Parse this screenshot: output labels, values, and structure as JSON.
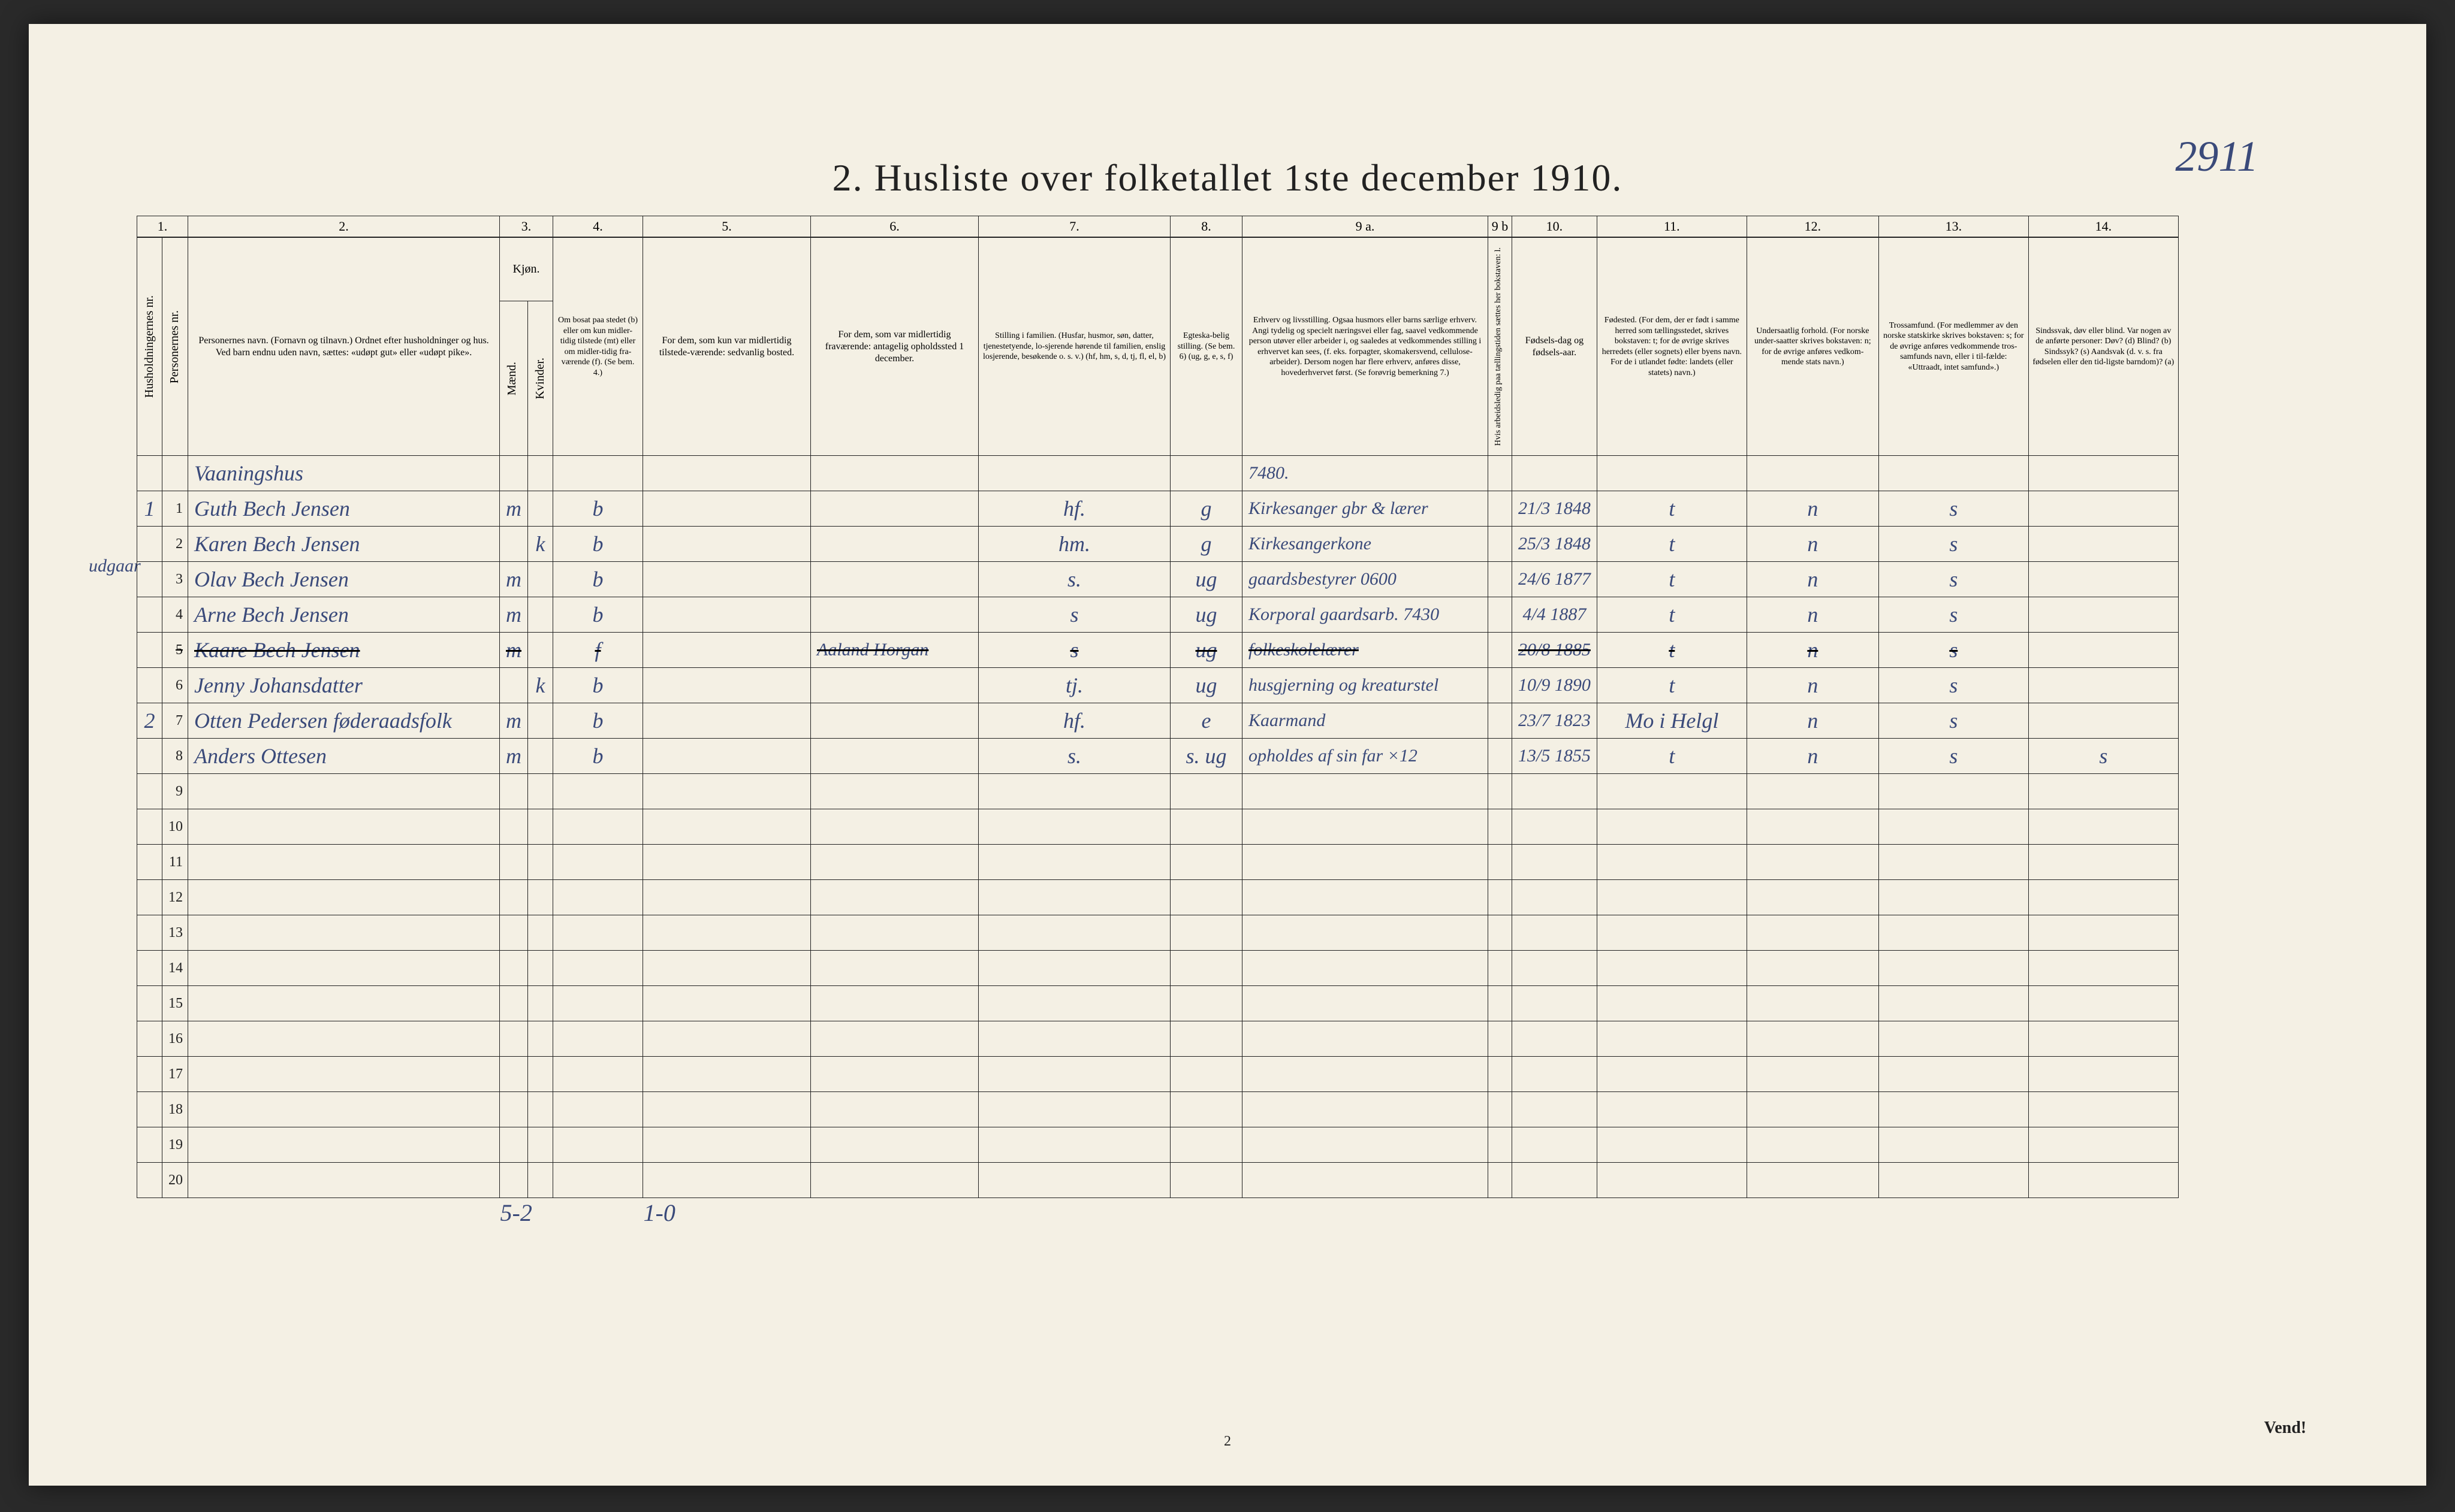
{
  "page_number_handwritten": "2911",
  "title": "2.  Husliste over folketallet 1ste december 1910.",
  "margin_note": "udgaar",
  "col_numbers": [
    "1.",
    "2.",
    "3.",
    "4.",
    "5.",
    "6.",
    "7.",
    "8.",
    "9 a.",
    "9 b",
    "10.",
    "11.",
    "12.",
    "13.",
    "14."
  ],
  "headers": {
    "c1a": "Husholdningernes nr.",
    "c1b": "Personernes nr.",
    "c2": "Personernes navn.\n(Fornavn og tilnavn.)\nOrdnet efter husholdninger og hus.\nVed barn endnu uden navn, sættes: «udøpt gut» eller «udøpt pike».",
    "c3": "Kjøn.",
    "c3a": "Mænd.",
    "c3b": "Kvinder.",
    "c4": "Om bosat paa stedet (b) eller om kun midler-tidig tilstede (mt) eller om midler-tidig fra-værende (f). (Se bem. 4.)",
    "c5": "For dem, som kun var midlertidig tilstede-værende:\nsedvanlig bosted.",
    "c6": "For dem, som var midlertidig fraværende:\nantagelig opholdssted 1 december.",
    "c7": "Stilling i familien.\n(Husfar, husmor, søn, datter, tjenestetyende, lo-sjerende hørende til familien, enslig losjerende, besøkende o. s. v.)\n(hf, hm, s, d, tj, fl, el, b)",
    "c8": "Egteska-belig stilling. (Se bem. 6)\n(ug, g, e, s, f)",
    "c9a": "Erhverv og livsstilling.\nOgsaa husmors eller barns særlige erhverv. Angi tydelig og specielt næringsvei eller fag, saavel vedkommende person utøver eller arbeider i, og saaledes at vedkommendes stilling i erhvervet kan sees, (f. eks. forpagter, skomakersvend, cellulose-arbeider). Dersom nogen har flere erhverv, anføres disse, hovederhvervet først.\n(Se forøvrig bemerkning 7.)",
    "c9b": "Hvis arbeidsledig paa tællingstiden sættes her bokstaven: l.",
    "c10": "Fødsels-dag og fødsels-aar.",
    "c11": "Fødested.\n(For dem, der er født i samme herred som tællingsstedet, skrives bokstaven: t; for de øvrige skrives herredets (eller sognets) eller byens navn. For de i utlandet fødte: landets (eller statets) navn.)",
    "c12": "Undersaatlig forhold.\n(For norske under-saatter skrives bokstaven: n; for de øvrige anføres vedkom-mende stats navn.)",
    "c13": "Trossamfund.\n(For medlemmer av den norske statskirke skrives bokstaven: s; for de øvrige anføres vedkommende tros-samfunds navn, eller i til-fælde: «Uttraadt, intet samfund».)",
    "c14": "Sindssvak, døv eller blind.\nVar nogen av de anførte personer:\nDøv?      (d)\nBlind?    (b)\nSindssyk? (s)\nAandsvak (d. v. s. fra fødselen eller den tid-ligste barndom)? (a)"
  },
  "rows": [
    {
      "hh": "",
      "pn": "",
      "name": "Vaaningshus",
      "m": "",
      "k": "",
      "pres": "",
      "away": "",
      "absent": "",
      "famrole": "",
      "mar": "",
      "occ": "7480.",
      "led": "",
      "dob": "",
      "birthplace": "",
      "nat": "",
      "rel": "",
      "dis": ""
    },
    {
      "hh": "1",
      "pn": "1",
      "name": "Guth Bech Jensen",
      "m": "m",
      "k": "",
      "pres": "b",
      "away": "",
      "absent": "",
      "famrole": "hf.",
      "mar": "g",
      "occ": "Kirkesanger gbr & lærer",
      "led": "",
      "dob": "21/3 1848",
      "birthplace": "t",
      "nat": "n",
      "rel": "s",
      "dis": ""
    },
    {
      "hh": "",
      "pn": "2",
      "name": "Karen Bech Jensen",
      "m": "",
      "k": "k",
      "pres": "b",
      "away": "",
      "absent": "",
      "famrole": "hm.",
      "mar": "g",
      "occ": "Kirkesangerkone",
      "led": "",
      "dob": "25/3 1848",
      "birthplace": "t",
      "nat": "n",
      "rel": "s",
      "dis": ""
    },
    {
      "hh": "",
      "pn": "3",
      "name": "Olav Bech Jensen",
      "m": "m",
      "k": "",
      "pres": "b",
      "away": "",
      "absent": "",
      "famrole": "s.",
      "mar": "ug",
      "occ": "gaardsbestyrer   0600",
      "led": "",
      "dob": "24/6 1877",
      "birthplace": "t",
      "nat": "n",
      "rel": "s",
      "dis": ""
    },
    {
      "hh": "",
      "pn": "4",
      "name": "Arne Bech Jensen",
      "m": "m",
      "k": "",
      "pres": "b",
      "away": "",
      "absent": "",
      "famrole": "s",
      "mar": "ug",
      "occ": "Korporal gaardsarb.  7430",
      "led": "",
      "dob": "4/4 1887",
      "birthplace": "t",
      "nat": "n",
      "rel": "s",
      "dis": ""
    },
    {
      "hh": "",
      "pn": "5",
      "name": "Kaare Bech Jensen",
      "m": "m",
      "k": "",
      "pres": "f",
      "away": "",
      "absent": "Aaland  Horgan",
      "famrole": "s",
      "mar": "ug",
      "occ": "folkeskolelærer",
      "led": "",
      "dob": "20/8 1885",
      "birthplace": "t",
      "nat": "n",
      "rel": "s",
      "dis": "",
      "struck": true
    },
    {
      "hh": "",
      "pn": "6",
      "name": "Jenny Johansdatter",
      "m": "",
      "k": "k",
      "pres": "b",
      "away": "",
      "absent": "",
      "famrole": "tj.",
      "mar": "ug",
      "occ": "husgjerning og kreaturstel",
      "led": "",
      "dob": "10/9 1890",
      "birthplace": "t",
      "nat": "n",
      "rel": "s",
      "dis": ""
    },
    {
      "hh": "2",
      "pn": "7",
      "name": "Otten Pedersen  føderaadsfolk",
      "m": "m",
      "k": "",
      "pres": "b",
      "away": "",
      "absent": "",
      "famrole": "hf.",
      "mar": "e",
      "occ": "Kaarmand",
      "led": "",
      "dob": "23/7 1823",
      "birthplace": "Mo i Helgl",
      "nat": "n",
      "rel": "s",
      "dis": ""
    },
    {
      "hh": "",
      "pn": "8",
      "name": "Anders Ottesen",
      "m": "m",
      "k": "",
      "pres": "b",
      "away": "",
      "absent": "",
      "famrole": "s.",
      "mar": "s. ug",
      "occ": "opholdes af sin far  ×12",
      "led": "",
      "dob": "13/5 1855",
      "birthplace": "t",
      "nat": "n",
      "rel": "s",
      "dis": "s"
    }
  ],
  "blank_row_count": 12,
  "footer_tally_left": "5-2",
  "footer_tally_right": "1-0",
  "footer_page": "2",
  "vend": "Vend!",
  "colors": {
    "paper": "#f4f0e4",
    "ink": "#222222",
    "handwriting": "#3a4a7a",
    "outer": "#2a2a2a"
  }
}
